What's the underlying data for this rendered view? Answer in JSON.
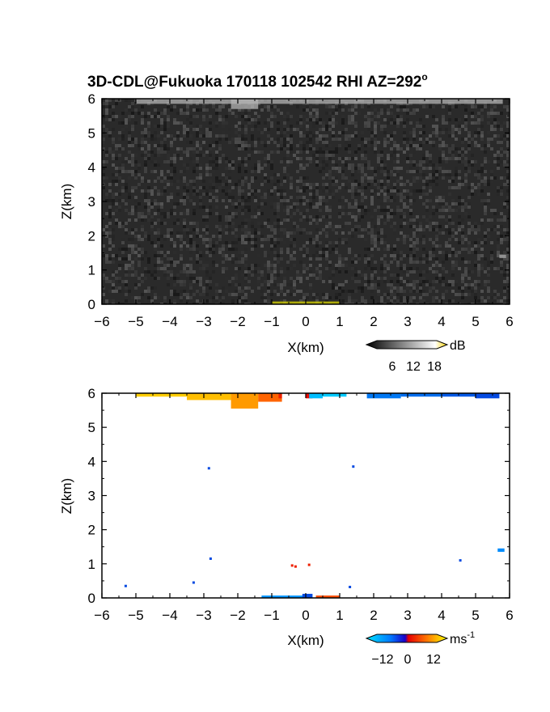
{
  "title": "3D-CDL@Fukuoka 170118 102542 RHI AZ=292",
  "title_sup": "o",
  "chart_data": [
    {
      "type": "heatmap",
      "name": "reflectivity",
      "xlabel": "X(km)",
      "ylabel": "Z(km)",
      "xlim": [
        -6,
        6
      ],
      "ylim": [
        0,
        6
      ],
      "xticks": [
        "-6",
        "-5",
        "-4",
        "-3",
        "-2",
        "-1",
        "0",
        "1",
        "2",
        "3",
        "4",
        "5",
        "6"
      ],
      "yticks": [
        "0",
        "1",
        "2",
        "3",
        "4",
        "5",
        "6"
      ],
      "background": "noise, mostly dark gray",
      "features": [
        {
          "x": [
            -5.0,
            5.8
          ],
          "z": [
            5.85,
            6.0
          ],
          "shade": "light gray"
        },
        {
          "x": [
            -2.2,
            -1.4
          ],
          "z": [
            5.7,
            6.0
          ],
          "shade": "light gray"
        },
        {
          "x": [
            5.7,
            5.9
          ],
          "z": [
            1.35,
            1.45
          ],
          "shade": "light gray"
        },
        {
          "x": [
            -1.0,
            1.0
          ],
          "z": [
            0.0,
            0.08
          ],
          "shade": "yellow"
        }
      ],
      "colorbar": {
        "unit": "dB",
        "ticks": [
          "6",
          "12",
          "18"
        ],
        "colors": [
          "#000000",
          "#ffffff",
          "#ffd400"
        ]
      }
    },
    {
      "type": "scatter",
      "name": "doppler_velocity",
      "xlabel": "X(km)",
      "ylabel": "Z(km)",
      "xlim": [
        -6,
        6
      ],
      "ylim": [
        0,
        6
      ],
      "xticks": [
        "-6",
        "-5",
        "-4",
        "-3",
        "-2",
        "-1",
        "0",
        "1",
        "2",
        "3",
        "4",
        "5",
        "6"
      ],
      "yticks": [
        "0",
        "1",
        "2",
        "3",
        "4",
        "5",
        "6"
      ],
      "segments": [
        {
          "x": [
            -5.0,
            -3.5
          ],
          "z": [
            5.9,
            6.0
          ],
          "v": 12
        },
        {
          "x": [
            -3.5,
            -2.2
          ],
          "z": [
            5.8,
            6.0
          ],
          "v": 10
        },
        {
          "x": [
            -2.2,
            -1.4
          ],
          "z": [
            5.55,
            6.0
          ],
          "v": 8
        },
        {
          "x": [
            -1.4,
            -0.7
          ],
          "z": [
            5.75,
            6.0
          ],
          "v": 5
        },
        {
          "x": [
            -0.8,
            -0.7
          ],
          "z": [
            5.85,
            6.0
          ],
          "v": 2
        },
        {
          "x": [
            0.0,
            0.2
          ],
          "z": [
            5.85,
            6.0
          ],
          "v": 1
        },
        {
          "x": [
            0.1,
            0.5
          ],
          "z": [
            5.85,
            6.0
          ],
          "v": -15
        },
        {
          "x": [
            0.5,
            1.2
          ],
          "z": [
            5.9,
            6.0
          ],
          "v": -16
        },
        {
          "x": [
            1.8,
            2.8
          ],
          "z": [
            5.85,
            6.0
          ],
          "v": -9
        },
        {
          "x": [
            2.8,
            4.0
          ],
          "z": [
            5.9,
            6.0
          ],
          "v": -8
        },
        {
          "x": [
            4.0,
            5.0
          ],
          "z": [
            5.9,
            6.0
          ],
          "v": -6
        },
        {
          "x": [
            5.0,
            5.7
          ],
          "z": [
            5.85,
            6.0
          ],
          "v": -5
        },
        {
          "x": [
            -1.3,
            0.0
          ],
          "z": [
            0.0,
            0.07
          ],
          "v": -12
        },
        {
          "x": [
            -0.1,
            0.2
          ],
          "z": [
            0.0,
            0.12
          ],
          "v": -5
        },
        {
          "x": [
            0.3,
            1.0
          ],
          "z": [
            0.0,
            0.07
          ],
          "v": 4
        },
        {
          "x": [
            5.65,
            5.85
          ],
          "z": [
            1.35,
            1.45
          ],
          "v": -11
        }
      ],
      "points": [
        {
          "x": -5.3,
          "z": 0.35,
          "v": -5
        },
        {
          "x": -3.3,
          "z": 0.45,
          "v": -5
        },
        {
          "x": -2.8,
          "z": 1.15,
          "v": -5
        },
        {
          "x": -2.85,
          "z": 3.8,
          "v": -5
        },
        {
          "x": -0.4,
          "z": 0.95,
          "v": 2
        },
        {
          "x": -0.3,
          "z": 0.92,
          "v": 2
        },
        {
          "x": 0.1,
          "z": 0.97,
          "v": 2
        },
        {
          "x": 1.3,
          "z": 0.32,
          "v": -5
        },
        {
          "x": 1.4,
          "z": 3.85,
          "v": -5
        },
        {
          "x": 4.55,
          "z": 1.1,
          "v": -5
        }
      ],
      "colorbar": {
        "unit": "ms",
        "unit_exp": "-1",
        "ticks": [
          "−12",
          "0",
          "12"
        ],
        "colors": [
          "#00e6ff",
          "#0078ff",
          "#1a00c8",
          "#e60000",
          "#ff7800",
          "#ffff00"
        ]
      }
    }
  ]
}
